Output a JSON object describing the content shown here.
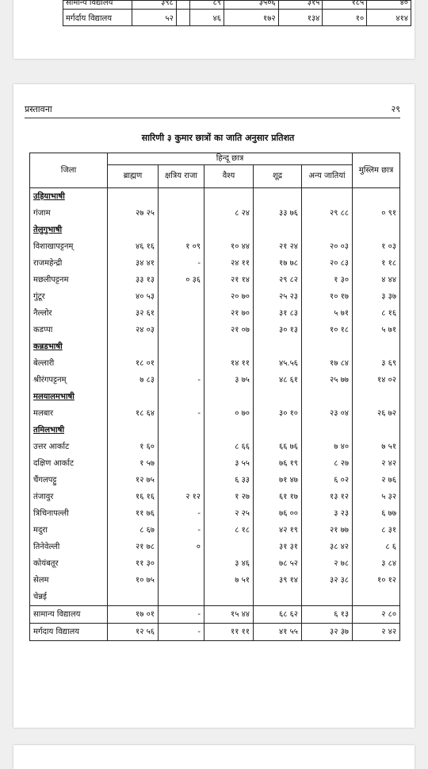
{
  "top_fragment": {
    "partial_row": {
      "label": "सामान्य विद्यालय",
      "values": [
        "३९८",
        "",
        "८९",
        "३५०६",
        "३१५",
        "१८५",
        "४०"
      ]
    },
    "last_row": {
      "label": "मर्गर्दाय विद्यालय",
      "values": [
        "५२",
        "",
        "४६",
        "१७२",
        "१३४",
        "१०",
        "४१४"
      ]
    }
  },
  "page": {
    "left_header": "प्रस्तावना",
    "page_number": "२९"
  },
  "caption": "सारिणी ३ कुमार छात्रों का जाति अनुसार प्रतिशत",
  "table": {
    "header": {
      "district": "जिला",
      "hindu_group": "हिन्दू छात्र",
      "brahmin": "ब्राह्मण",
      "kshatriya": "क्षत्रिय राजा",
      "vaishya": "वैश्य",
      "shudra": "शूद्र",
      "other": "अन्य जातियां",
      "muslim": "मुस्लिम छात्र"
    },
    "rows": [
      {
        "label": "उड़ियाभाषी",
        "group": true,
        "values": [
          "",
          "",
          "",
          "",
          "",
          ""
        ]
      },
      {
        "label": "गंजाम",
        "values": [
          "२७ २५",
          "",
          "८ २४",
          "३३ ७६",
          "२९ ८८",
          "० ९१"
        ]
      },
      {
        "label": "तेलुगुभाषी",
        "group": true,
        "values": [
          "",
          "",
          "",
          "",
          "",
          ""
        ]
      },
      {
        "label": "विशाखापट्टनम्",
        "values": [
          "४६ १६",
          "१ ०९",
          "१० ४४",
          "२१ २४",
          "२० ०३",
          "१ ०३"
        ]
      },
      {
        "label": "राजमहेन्द्री",
        "values": [
          "३४ ४१",
          "-",
          "२४ ११",
          "१७ ७८",
          "२० ८३",
          "१ १८"
        ]
      },
      {
        "label": "मछलीपट्टनम",
        "values": [
          "३३ १३",
          "० ३६",
          "२१ १४",
          "२९ ८२",
          "१ ३०",
          "४ ४४"
        ]
      },
      {
        "label": "गुंटूर",
        "values": [
          "४० ५३",
          "",
          "२० ७०",
          "२५ २३",
          "१० १७",
          "३ ३७"
        ]
      },
      {
        "label": "नैल्लोर",
        "values": [
          "३२ ६१",
          "",
          "२१ ७०",
          "३१ ८३",
          "५ ७१",
          "८ १६"
        ]
      },
      {
        "label": "कडप्पा",
        "values": [
          "२४ ०३",
          "",
          "२१ ०७",
          "३० १३",
          "१० १८",
          "५ ७१"
        ]
      },
      {
        "label": "कन्नडभाषी",
        "group": true,
        "values": [
          "",
          "",
          "",
          "",
          "",
          ""
        ]
      },
      {
        "label": "बेल्लारी",
        "values": [
          "१८ ०१",
          "",
          "१४ ११",
          "४५.५६",
          "१७ ८४",
          "३ ६९"
        ]
      },
      {
        "label": "श्रीरंगपट्टनम्",
        "values": [
          "७ ८३",
          "-",
          "३ ७५",
          "४८ ६१",
          "२५ ७७",
          "१४ ०२"
        ]
      },
      {
        "label": "मलयालमभाषी",
        "group": true,
        "values": [
          "",
          "",
          "",
          "",
          "",
          ""
        ]
      },
      {
        "label": "मलबार",
        "values": [
          "१८ ६४",
          "-",
          "० ७०",
          "३० १०",
          "२३ ०४",
          "२६ ७२"
        ]
      },
      {
        "label": "तमिलभाषी",
        "group": true,
        "values": [
          "",
          "",
          "",
          "",
          "",
          ""
        ]
      },
      {
        "label": "उत्तर आर्काट",
        "values": [
          "१ ६०",
          "",
          "८ ६६",
          "६६ ७६",
          "७ ४०",
          "७ ५१"
        ]
      },
      {
        "label": "दक्षिण आर्काट",
        "values": [
          "१ ५७",
          "",
          "३ ५५",
          "७६ १९",
          "८ २७",
          "२ ४२"
        ]
      },
      {
        "label": "चैंगलपट्टु",
        "values": [
          "१२ ७५",
          "",
          "६ ३३",
          "७१ ४७",
          "६ ०२",
          "२ ७६"
        ]
      },
      {
        "label": "तंजावुर",
        "values": [
          "१६ १६",
          "२ १२",
          "१ २७",
          "६१ १७",
          "१३ १२",
          "५ ३२"
        ]
      },
      {
        "label": "त्रिचिनापल्ली",
        "values": [
          "११ ७६",
          "-",
          "२ २५",
          "७६ ००",
          "३ २३",
          "६ ७७"
        ]
      },
      {
        "label": "मदुरा",
        "values": [
          "८ ६७",
          "-",
          "८ १८",
          "४२ १९",
          "२१ ७७",
          "८ ३१"
        ]
      },
      {
        "label": "तिनेवेल्ली",
        "values": [
          "२१ ७८",
          "०",
          "",
          "३१ ३१",
          "३८ ४२",
          "८ ६"
        ]
      },
      {
        "label": "कोयंबतूर",
        "values": [
          "११ ३०",
          "",
          "३ ४६",
          "७८ ५२",
          "२ ७८",
          "३ ८४"
        ]
      },
      {
        "label": "सेलम",
        "values": [
          "१० ७५",
          "",
          "७ ५१",
          "३९ १४",
          "३२ ३८",
          "१० १२"
        ]
      },
      {
        "label": "चेन्नई",
        "values": [
          "",
          "",
          "",
          "",
          "",
          ""
        ]
      },
      {
        "label": "सामान्य विद्यालय",
        "boxed": true,
        "values": [
          "१७ ०१",
          "-",
          "१५ ४४",
          "६८ ६२",
          "६ १३",
          "२ ८०"
        ]
      },
      {
        "label": "मर्गदाय विद्यालय",
        "boxed": true,
        "values": [
          "१२ ५६",
          "-",
          "११ ११",
          "४१ ५५",
          "३२ ३७",
          "२ ४२"
        ]
      }
    ]
  }
}
